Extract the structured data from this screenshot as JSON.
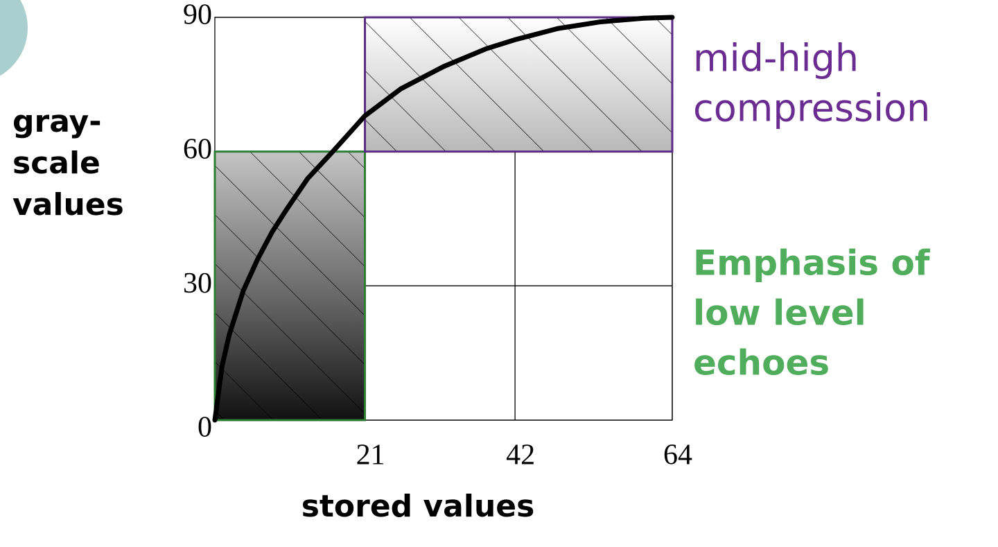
{
  "chart_data": {
    "type": "line",
    "xlabel": "stored values",
    "ylabel": [
      "gray-",
      "scale",
      "values"
    ],
    "xlim": [
      0,
      64
    ],
    "xticks": [
      21,
      42,
      64
    ],
    "ylim": [
      0,
      90
    ],
    "yticks": [
      0,
      30,
      60,
      90
    ],
    "grid": true,
    "color": "#000000",
    "x": [
      0,
      1,
      2,
      4,
      6,
      8,
      10,
      13,
      16.5,
      21,
      26,
      32,
      38,
      42,
      48,
      54,
      60,
      64
    ],
    "values": [
      0,
      12,
      19,
      29,
      36,
      42,
      47,
      54,
      60,
      68,
      74,
      79,
      83,
      85,
      87.5,
      89,
      89.8,
      90
    ],
    "regions": [
      {
        "label": [
          "Emphasis of",
          "low level",
          "echoes"
        ],
        "color": "#2e7d32",
        "text_color": "#4fad5b",
        "x": [
          0,
          21
        ],
        "y": [
          0,
          60
        ]
      },
      {
        "label": [
          "mid-high",
          "compression"
        ],
        "color": "#5b2a86",
        "text_color": "#6a2c91",
        "x": [
          21,
          64
        ],
        "y": [
          60,
          90
        ]
      }
    ]
  }
}
